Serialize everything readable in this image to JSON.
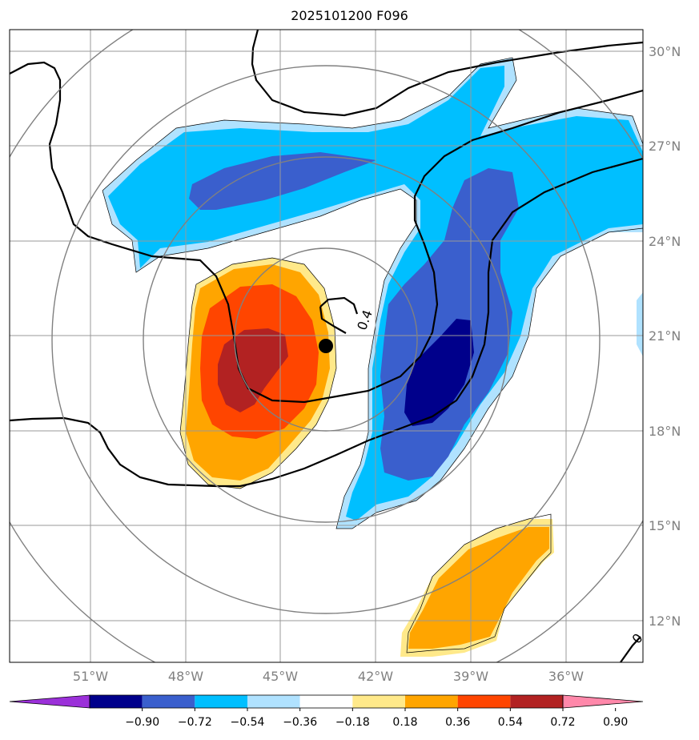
{
  "title": "2025101200 F096",
  "map": {
    "lon_labels": [
      "51°W",
      "48°W",
      "45°W",
      "42°W",
      "39°W",
      "36°W"
    ],
    "lat_labels": [
      "30°N",
      "27°N",
      "24°N",
      "21°N",
      "18°N",
      "15°N",
      "12°N"
    ],
    "contour_labels": [
      "0.4",
      "0"
    ],
    "storm_center": {
      "lon": "43.6°W",
      "lat": "20.7°N"
    },
    "range_rings": 4
  },
  "colorbar": {
    "labels": [
      "−0.90",
      "−0.72",
      "−0.54",
      "−0.36",
      "−0.18",
      "0.18",
      "0.36",
      "0.54",
      "0.72",
      "0.90"
    ],
    "colors": [
      "#9b30d9",
      "#00008b",
      "#3a5fcd",
      "#00bfff",
      "#b0e2ff",
      "#ffffff",
      "#ffe98a",
      "#ffa500",
      "#ff4500",
      "#b22222",
      "#ff88aa"
    ]
  }
}
